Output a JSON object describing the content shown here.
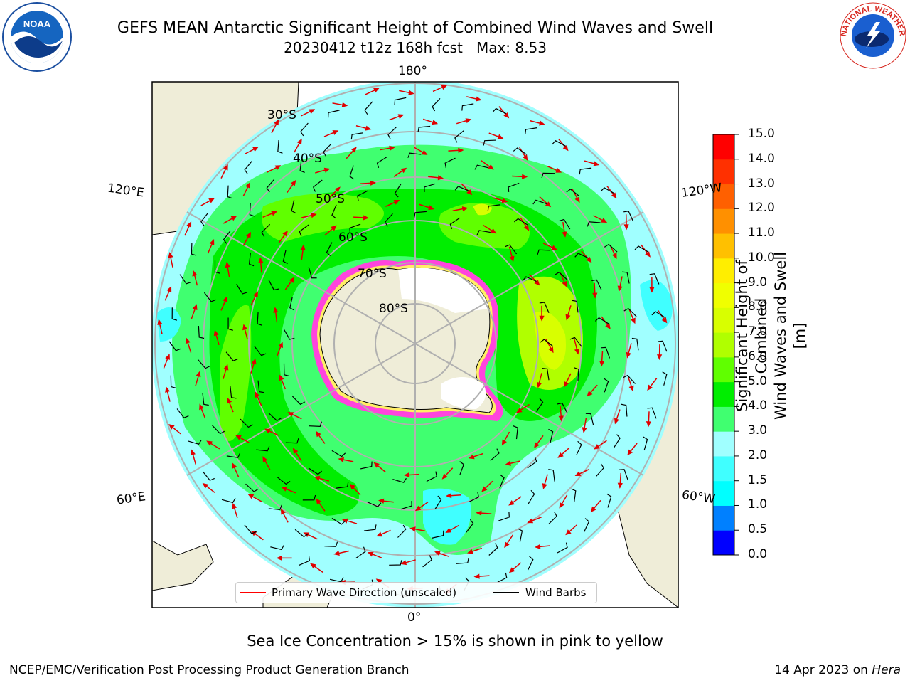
{
  "title": {
    "line1": "GEFS MEAN Antarctic Significant Height of Combined Wind Waves and Swell",
    "line2_date": "20230412 t12z 168h fcst",
    "line2_max": "Max: 8.53"
  },
  "logos": {
    "left": {
      "text": "NOAA",
      "icon": "noaa-logo"
    },
    "right": {
      "text": "NATIONAL WEATHER SERVICE",
      "icon": "nws-logo"
    }
  },
  "map": {
    "projection": "south-polar-stereographic",
    "lon_labels": {
      "top": "180°",
      "bottom": "0°",
      "left_upper": "120°E",
      "left_lower": "60°E",
      "right_upper": "120°W",
      "right_lower": "60°W"
    },
    "lat_labels": [
      "30°S",
      "40°S",
      "50°S",
      "60°S",
      "70°S",
      "80°S"
    ]
  },
  "colorbar": {
    "title_line1": "Significant Height of Combined",
    "title_line2": "Wind Waves and Swell [m]",
    "ticks": [
      "0.0",
      "0.5",
      "1.0",
      "1.5",
      "2.0",
      "3.0",
      "4.0",
      "5.0",
      "6.0",
      "7.0",
      "8.0",
      "9.0",
      "10.0",
      "11.0",
      "12.0",
      "13.0",
      "14.0",
      "15.0"
    ],
    "colors": [
      "#0000ff",
      "#0080ff",
      "#00ffff",
      "#40ffff",
      "#a0ffff",
      "#40ff70",
      "#00ee00",
      "#60ff00",
      "#b0ff00",
      "#d8ff00",
      "#f0ff00",
      "#ffee00",
      "#ffc000",
      "#ff9000",
      "#ff6000",
      "#ff3000",
      "#ff0000"
    ]
  },
  "legend": {
    "wave_label": "Primary Wave Direction (unscaled)",
    "wave_color": "#ff0000",
    "barb_label": "Wind Barbs",
    "barb_color": "#000000"
  },
  "note": "Sea Ice Concentration > 15% is shown in pink to yellow",
  "footer": {
    "left": "NCEP/EMC/Verification Post Processing Product Generation Branch",
    "right_date": "14 Apr 2023 on",
    "right_machine": "Hera"
  },
  "colors": {
    "land": "#efedd8",
    "ice_edge": "#ff44dd",
    "graticule": "#b0b0b0"
  }
}
